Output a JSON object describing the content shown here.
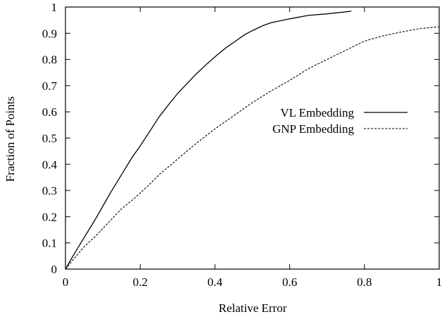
{
  "chart_data": {
    "type": "line",
    "xlabel": "Relative Error",
    "ylabel": "Fraction of Points",
    "xlim": [
      0,
      1
    ],
    "ylim": [
      0,
      1
    ],
    "xticks": [
      "0",
      "0.2",
      "0.4",
      "0.6",
      "0.8",
      "1"
    ],
    "yticks": [
      "0",
      "0.1",
      "0.2",
      "0.3",
      "0.4",
      "0.5",
      "0.6",
      "0.7",
      "0.8",
      "0.9",
      "1"
    ],
    "grid": false,
    "legend_position": "right-middle",
    "series": [
      {
        "name": "VL Embedding",
        "line_style": "solid",
        "color": "#000000",
        "x": [
          0,
          0.02,
          0.05,
          0.08,
          0.1,
          0.12,
          0.15,
          0.18,
          0.2,
          0.23,
          0.25,
          0.28,
          0.3,
          0.33,
          0.35,
          0.38,
          0.4,
          0.43,
          0.45,
          0.48,
          0.5,
          0.53,
          0.55,
          0.6,
          0.65,
          0.7,
          0.765
        ],
        "y": [
          0,
          0.05,
          0.12,
          0.19,
          0.24,
          0.29,
          0.36,
          0.43,
          0.47,
          0.535,
          0.58,
          0.635,
          0.67,
          0.715,
          0.745,
          0.785,
          0.81,
          0.845,
          0.865,
          0.895,
          0.91,
          0.93,
          0.94,
          0.955,
          0.968,
          0.974,
          0.984
        ]
      },
      {
        "name": "GNP Embedding",
        "line_style": "dashed",
        "color": "#000000",
        "x": [
          0,
          0.02,
          0.05,
          0.08,
          0.1,
          0.13,
          0.15,
          0.18,
          0.2,
          0.23,
          0.25,
          0.28,
          0.3,
          0.35,
          0.4,
          0.45,
          0.5,
          0.55,
          0.6,
          0.65,
          0.7,
          0.75,
          0.8,
          0.85,
          0.9,
          0.95,
          1.0
        ],
        "y": [
          0,
          0.035,
          0.085,
          0.125,
          0.155,
          0.2,
          0.23,
          0.265,
          0.29,
          0.33,
          0.36,
          0.395,
          0.42,
          0.48,
          0.535,
          0.585,
          0.635,
          0.68,
          0.72,
          0.765,
          0.8,
          0.835,
          0.87,
          0.89,
          0.905,
          0.918,
          0.925
        ]
      }
    ]
  }
}
